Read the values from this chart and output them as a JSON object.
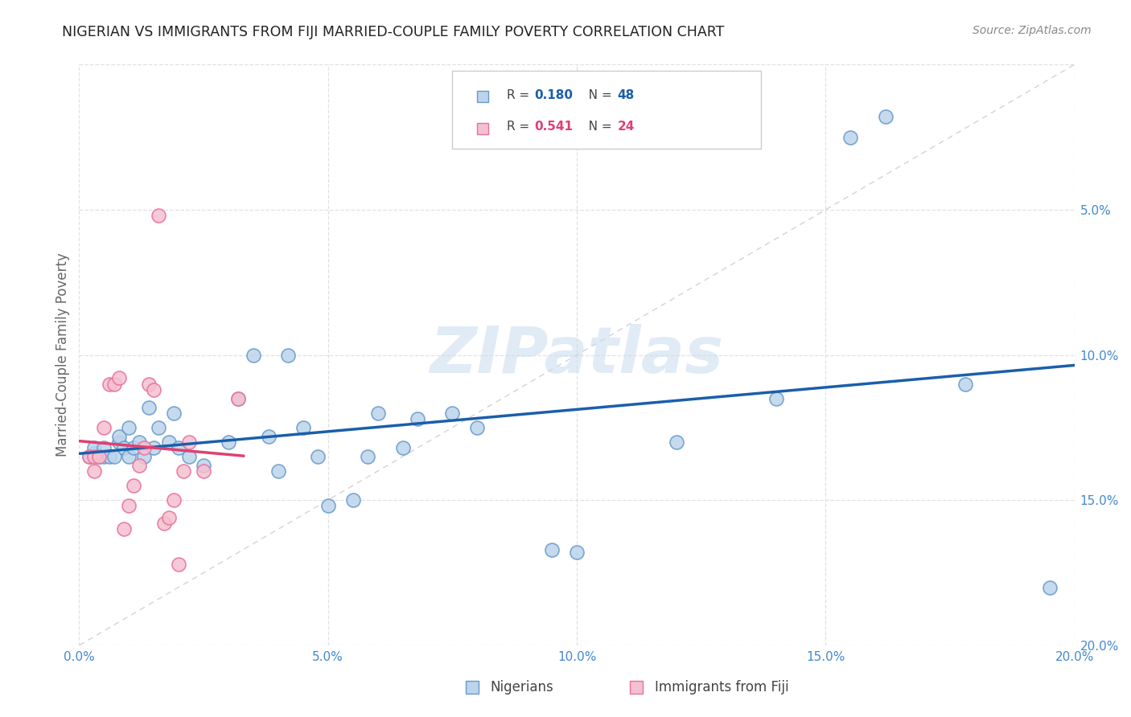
{
  "title": "NIGERIAN VS IMMIGRANTS FROM FIJI MARRIED-COUPLE FAMILY POVERTY CORRELATION CHART",
  "source": "Source: ZipAtlas.com",
  "ylabel": "Married-Couple Family Poverty",
  "xlim": [
    0,
    0.2
  ],
  "ylim": [
    0,
    0.2
  ],
  "xticks": [
    0.0,
    0.05,
    0.1,
    0.15,
    0.2
  ],
  "yticks": [
    0.0,
    0.05,
    0.1,
    0.15,
    0.2
  ],
  "xticklabels": [
    "0.0%",
    "5.0%",
    "10.0%",
    "15.0%",
    "20.0%"
  ],
  "yticklabels_right": [
    "20.0%",
    "15.0%",
    "10.0%",
    "5.0%",
    ""
  ],
  "nigerians_x": [
    0.002,
    0.003,
    0.003,
    0.004,
    0.005,
    0.005,
    0.006,
    0.007,
    0.008,
    0.008,
    0.009,
    0.01,
    0.01,
    0.011,
    0.012,
    0.013,
    0.014,
    0.015,
    0.016,
    0.018,
    0.019,
    0.02,
    0.022,
    0.025,
    0.03,
    0.032,
    0.035,
    0.038,
    0.04,
    0.042,
    0.045,
    0.048,
    0.05,
    0.055,
    0.058,
    0.06,
    0.065,
    0.068,
    0.075,
    0.08,
    0.095,
    0.1,
    0.12,
    0.14,
    0.155,
    0.162,
    0.178,
    0.195
  ],
  "nigerians_y": [
    0.065,
    0.066,
    0.068,
    0.065,
    0.065,
    0.068,
    0.065,
    0.065,
    0.07,
    0.072,
    0.068,
    0.065,
    0.075,
    0.068,
    0.07,
    0.065,
    0.082,
    0.068,
    0.075,
    0.07,
    0.08,
    0.068,
    0.065,
    0.062,
    0.07,
    0.085,
    0.1,
    0.072,
    0.06,
    0.1,
    0.075,
    0.065,
    0.048,
    0.05,
    0.065,
    0.08,
    0.068,
    0.078,
    0.08,
    0.075,
    0.033,
    0.032,
    0.07,
    0.085,
    0.175,
    0.182,
    0.09,
    0.02
  ],
  "fiji_x": [
    0.002,
    0.003,
    0.003,
    0.004,
    0.005,
    0.006,
    0.007,
    0.008,
    0.009,
    0.01,
    0.011,
    0.012,
    0.013,
    0.014,
    0.015,
    0.016,
    0.017,
    0.018,
    0.019,
    0.02,
    0.021,
    0.022,
    0.025,
    0.032
  ],
  "fiji_y": [
    0.065,
    0.06,
    0.065,
    0.065,
    0.075,
    0.09,
    0.09,
    0.092,
    0.04,
    0.048,
    0.055,
    0.062,
    0.068,
    0.09,
    0.088,
    0.148,
    0.042,
    0.044,
    0.05,
    0.028,
    0.06,
    0.07,
    0.06,
    0.085
  ],
  "nigerian_R": "0.180",
  "nigerian_N": "48",
  "fiji_R": "0.541",
  "fiji_N": "24",
  "blue_scatter_face": "#bcd4ec",
  "blue_scatter_edge": "#6699cc",
  "pink_scatter_face": "#f5c0d0",
  "pink_scatter_edge": "#e8709a",
  "blue_line": "#1a5faa",
  "pink_line": "#e04070",
  "diag_line": "#c8c8d0",
  "bg_color": "#ffffff",
  "grid_color": "#dddddd",
  "title_color": "#222222",
  "right_axis_color": "#4488cc",
  "bottom_axis_color": "#4488cc",
  "source_color": "#888888",
  "watermark_color": "#c8dcf0",
  "label_color": "#666666",
  "legend_blue_r_color": "#1a5faa",
  "legend_blue_n_color": "#1a5faa",
  "legend_pink_r_color": "#e04070",
  "legend_pink_n_color": "#e04070"
}
